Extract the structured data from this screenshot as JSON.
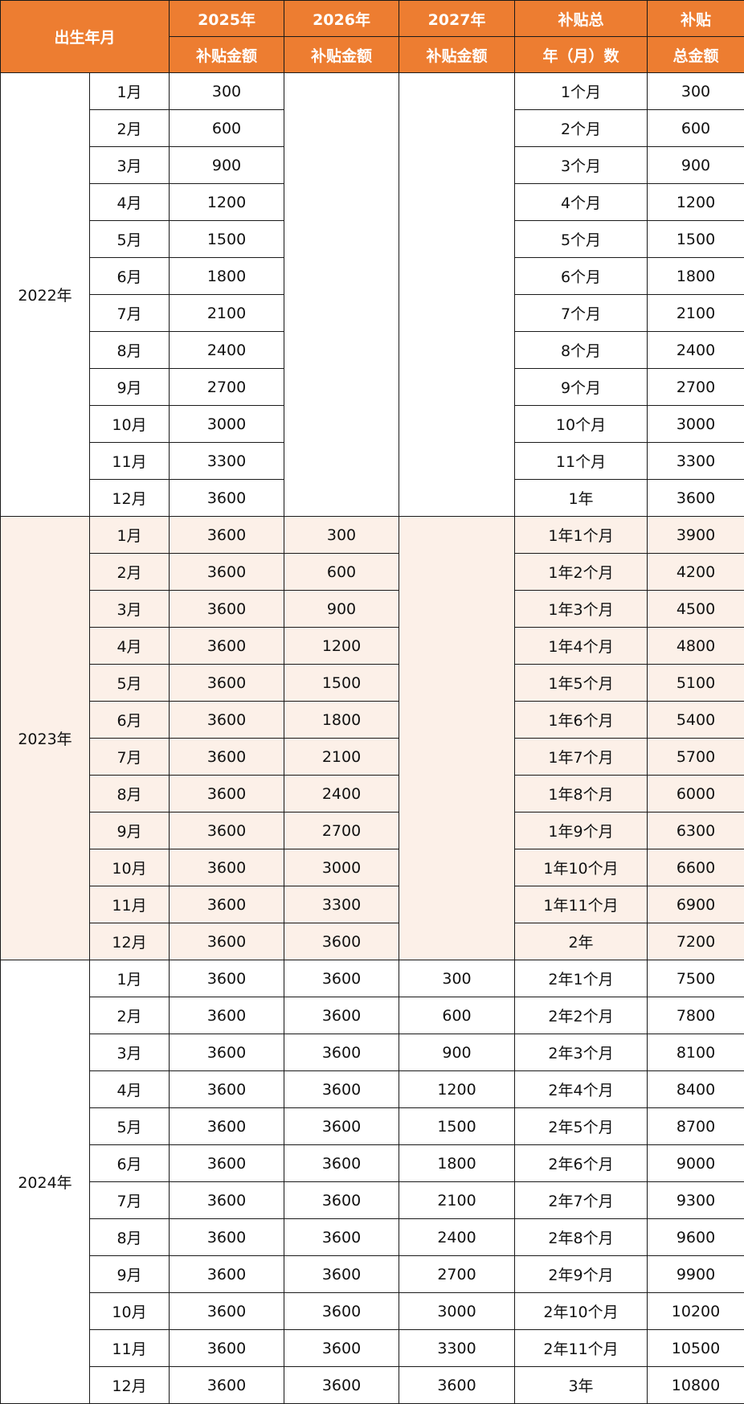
{
  "header": {
    "birth": "出生年月",
    "cols": [
      {
        "top": "2025年",
        "bottom": "补贴金额"
      },
      {
        "top": "2026年",
        "bottom": "补贴金额"
      },
      {
        "top": "2027年",
        "bottom": "补贴金额"
      },
      {
        "top": "补贴总",
        "bottom": "年（月）数"
      },
      {
        "top": "补贴",
        "bottom": "总金额"
      }
    ]
  },
  "colors": {
    "header_bg": "#ED7D31",
    "shade_bg": "#FCF0E8"
  },
  "groups": [
    {
      "year": "2022年",
      "shaded": false,
      "rows": [
        [
          "1月",
          "300",
          null,
          null,
          "1个月",
          "300"
        ],
        [
          "2月",
          "600",
          null,
          null,
          "2个月",
          "600"
        ],
        [
          "3月",
          "900",
          null,
          null,
          "3个月",
          "900"
        ],
        [
          "4月",
          "1200",
          null,
          null,
          "4个月",
          "1200"
        ],
        [
          "5月",
          "1500",
          null,
          null,
          "5个月",
          "1500"
        ],
        [
          "6月",
          "1800",
          null,
          null,
          "6个月",
          "1800"
        ],
        [
          "7月",
          "2100",
          null,
          null,
          "7个月",
          "2100"
        ],
        [
          "8月",
          "2400",
          null,
          null,
          "8个月",
          "2400"
        ],
        [
          "9月",
          "2700",
          null,
          null,
          "9个月",
          "2700"
        ],
        [
          "10月",
          "3000",
          null,
          null,
          "10个月",
          "3000"
        ],
        [
          "11月",
          "3300",
          null,
          null,
          "11个月",
          "3300"
        ],
        [
          "12月",
          "3600",
          null,
          null,
          "1年",
          "3600"
        ]
      ]
    },
    {
      "year": "2023年",
      "shaded": true,
      "rows": [
        [
          "1月",
          "3600",
          "300",
          null,
          "1年1个月",
          "3900"
        ],
        [
          "2月",
          "3600",
          "600",
          null,
          "1年2个月",
          "4200"
        ],
        [
          "3月",
          "3600",
          "900",
          null,
          "1年3个月",
          "4500"
        ],
        [
          "4月",
          "3600",
          "1200",
          null,
          "1年4个月",
          "4800"
        ],
        [
          "5月",
          "3600",
          "1500",
          null,
          "1年5个月",
          "5100"
        ],
        [
          "6月",
          "3600",
          "1800",
          null,
          "1年6个月",
          "5400"
        ],
        [
          "7月",
          "3600",
          "2100",
          null,
          "1年7个月",
          "5700"
        ],
        [
          "8月",
          "3600",
          "2400",
          null,
          "1年8个月",
          "6000"
        ],
        [
          "9月",
          "3600",
          "2700",
          null,
          "1年9个月",
          "6300"
        ],
        [
          "10月",
          "3600",
          "3000",
          null,
          "1年10个月",
          "6600"
        ],
        [
          "11月",
          "3600",
          "3300",
          null,
          "1年11个月",
          "6900"
        ],
        [
          "12月",
          "3600",
          "3600",
          null,
          "2年",
          "7200"
        ]
      ]
    },
    {
      "year": "2024年",
      "shaded": false,
      "rows": [
        [
          "1月",
          "3600",
          "3600",
          "300",
          "2年1个月",
          "7500"
        ],
        [
          "2月",
          "3600",
          "3600",
          "600",
          "2年2个月",
          "7800"
        ],
        [
          "3月",
          "3600",
          "3600",
          "900",
          "2年3个月",
          "8100"
        ],
        [
          "4月",
          "3600",
          "3600",
          "1200",
          "2年4个月",
          "8400"
        ],
        [
          "5月",
          "3600",
          "3600",
          "1500",
          "2年5个月",
          "8700"
        ],
        [
          "6月",
          "3600",
          "3600",
          "1800",
          "2年6个月",
          "9000"
        ],
        [
          "7月",
          "3600",
          "3600",
          "2100",
          "2年7个月",
          "9300"
        ],
        [
          "8月",
          "3600",
          "3600",
          "2400",
          "2年8个月",
          "9600"
        ],
        [
          "9月",
          "3600",
          "3600",
          "2700",
          "2年9个月",
          "9900"
        ],
        [
          "10月",
          "3600",
          "3600",
          "3000",
          "2年10个月",
          "10200"
        ],
        [
          "11月",
          "3600",
          "3600",
          "3300",
          "2年11个月",
          "10500"
        ],
        [
          "12月",
          "3600",
          "3600",
          "3600",
          "3年",
          "10800"
        ]
      ]
    }
  ]
}
